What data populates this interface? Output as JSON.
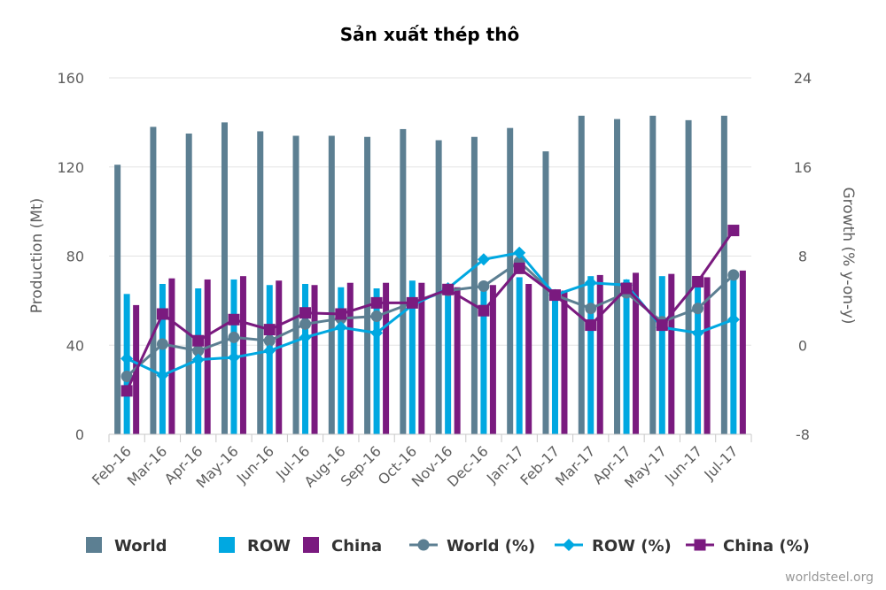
{
  "chart_data": {
    "type": "bar",
    "title": "Sản xuất thép thô",
    "ylabel": "Production (Mt)",
    "y2label": "Growth (% y-on-y)",
    "ylim": [
      0,
      160
    ],
    "y2lim": [
      -8,
      24
    ],
    "yticks": [
      "0",
      "40",
      "80",
      "120",
      "160"
    ],
    "y2ticks": [
      "-8",
      "0",
      "8",
      "16",
      "24"
    ],
    "categories": [
      "Feb-16",
      "Mar-16",
      "Apr-16",
      "May-16",
      "Jun-16",
      "Jul-16",
      "Aug-16",
      "Sep-16",
      "Oct-16",
      "Nov-16",
      "Dec-16",
      "Jan-17",
      "Feb-17",
      "Mar-17",
      "Apr-17",
      "May-17",
      "Jun-17",
      "Jul-17"
    ],
    "grid": true,
    "legend_position": "bottom",
    "series": [
      {
        "name": "World",
        "kind": "bar",
        "axis": "left",
        "color": "#5c7f92",
        "values": [
          121,
          138,
          135,
          140,
          136,
          134,
          134,
          133.5,
          137,
          132,
          133.5,
          137.5,
          127,
          143,
          141.5,
          143,
          141,
          143
        ]
      },
      {
        "name": "ROW",
        "kind": "bar",
        "axis": "left",
        "color": "#00a8e1",
        "values": [
          63,
          67.5,
          65.5,
          69.5,
          67,
          67.5,
          66,
          65.5,
          69,
          65,
          65,
          70.5,
          64.5,
          71,
          69.5,
          71,
          67.5,
          69.5
        ]
      },
      {
        "name": "China",
        "kind": "bar",
        "axis": "left",
        "color": "#7a1a7f",
        "values": [
          58,
          70,
          69.5,
          71,
          69,
          67,
          68,
          68,
          68,
          66,
          67,
          67.5,
          64.5,
          71.5,
          72.5,
          72,
          70.5,
          73.5
        ]
      },
      {
        "name": "World (%)",
        "kind": "line",
        "axis": "right",
        "color": "#5c7f92",
        "marker": "circle",
        "values": [
          -2.8,
          0.1,
          -0.5,
          0.7,
          0.4,
          1.9,
          2.4,
          2.6,
          3.8,
          4.9,
          5.3,
          7.5,
          4.5,
          3.3,
          4.7,
          2.1,
          3.3,
          6.3
        ]
      },
      {
        "name": "ROW (%)",
        "kind": "line",
        "axis": "right",
        "color": "#00a8e1",
        "marker": "diamond",
        "values": [
          -1.2,
          -2.7,
          -1.3,
          -1.1,
          -0.5,
          0.7,
          1.6,
          1.1,
          3.6,
          5.1,
          7.7,
          8.3,
          4.5,
          5.6,
          5.4,
          1.6,
          1.1,
          2.3
        ]
      },
      {
        "name": "China (%)",
        "kind": "line",
        "axis": "right",
        "color": "#7a1a7f",
        "marker": "square",
        "values": [
          -4.1,
          2.8,
          0.4,
          2.3,
          1.4,
          2.9,
          2.8,
          3.8,
          3.8,
          5,
          3.1,
          6.9,
          4.5,
          1.8,
          5.1,
          1.8,
          5.7,
          10.3
        ]
      }
    ]
  },
  "credit": "worldsteel.org"
}
